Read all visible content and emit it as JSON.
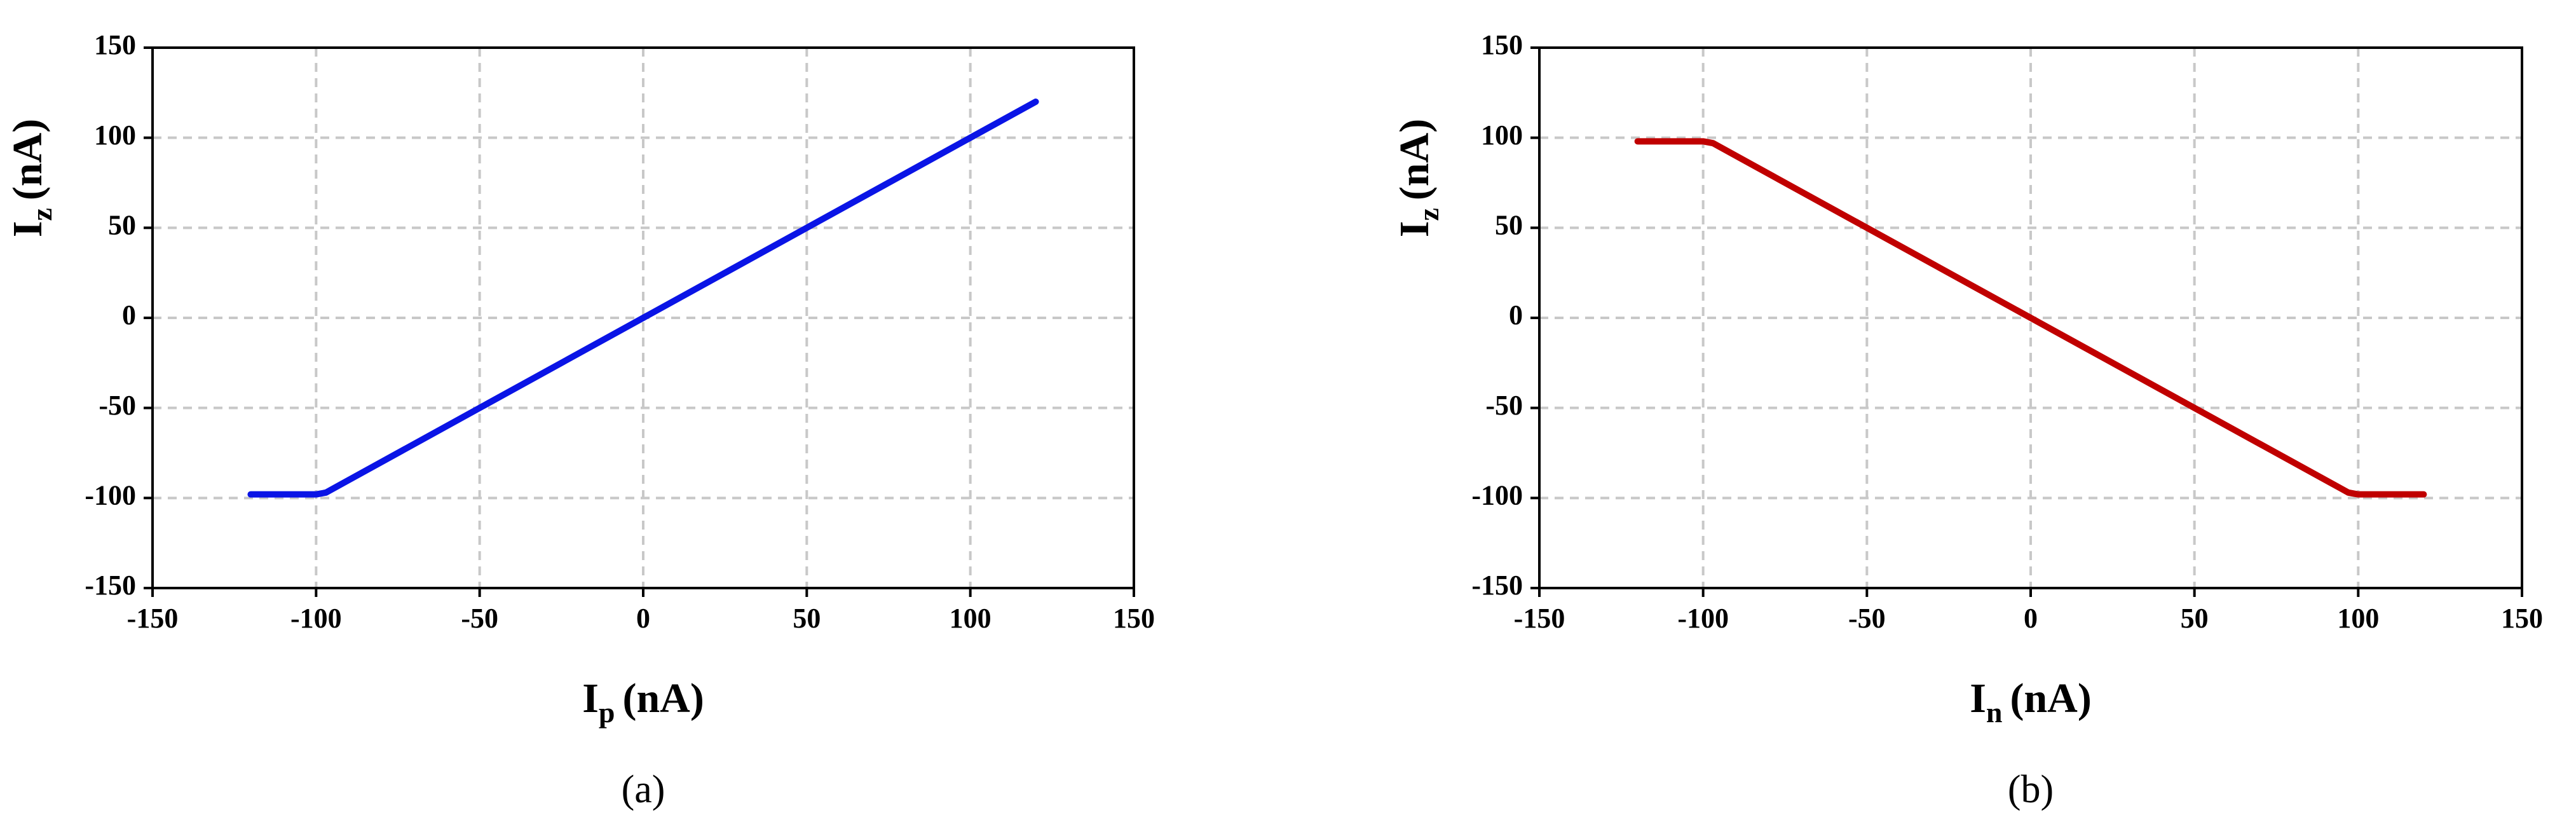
{
  "chart_data": [
    {
      "type": "line",
      "x_label": {
        "main": "I",
        "sub": "p",
        "unit": "(nA)"
      },
      "y_label": {
        "main": "I",
        "sub": "z",
        "unit": "(nA)"
      },
      "caption": "(a)",
      "color": "#0a14e6",
      "x": [
        -120,
        -100,
        -97,
        120
      ],
      "values": [
        -98,
        -98,
        -97,
        120
      ],
      "xlim": [
        -150,
        150
      ],
      "xticks": [
        -150,
        -100,
        -50,
        0,
        50,
        100,
        150
      ],
      "ylim": [
        -150,
        150
      ],
      "yticks": [
        -150,
        -100,
        -50,
        0,
        50,
        100,
        150
      ],
      "grid": true
    },
    {
      "type": "line",
      "x_label": {
        "main": "I",
        "sub": "n",
        "unit": "(nA)"
      },
      "y_label": {
        "main": "I",
        "sub": "z",
        "unit": "(nA)"
      },
      "caption": "(b)",
      "color": "#c00000",
      "x": [
        -120,
        -100,
        -97,
        97,
        100,
        120
      ],
      "values": [
        98,
        98,
        97,
        -97,
        -98,
        -98
      ],
      "xlim": [
        -150,
        150
      ],
      "xticks": [
        -150,
        -100,
        -50,
        0,
        50,
        100,
        150
      ],
      "ylim": [
        -150,
        150
      ],
      "yticks": [
        -150,
        -100,
        -50,
        0,
        50,
        100,
        150
      ],
      "grid": true
    }
  ]
}
